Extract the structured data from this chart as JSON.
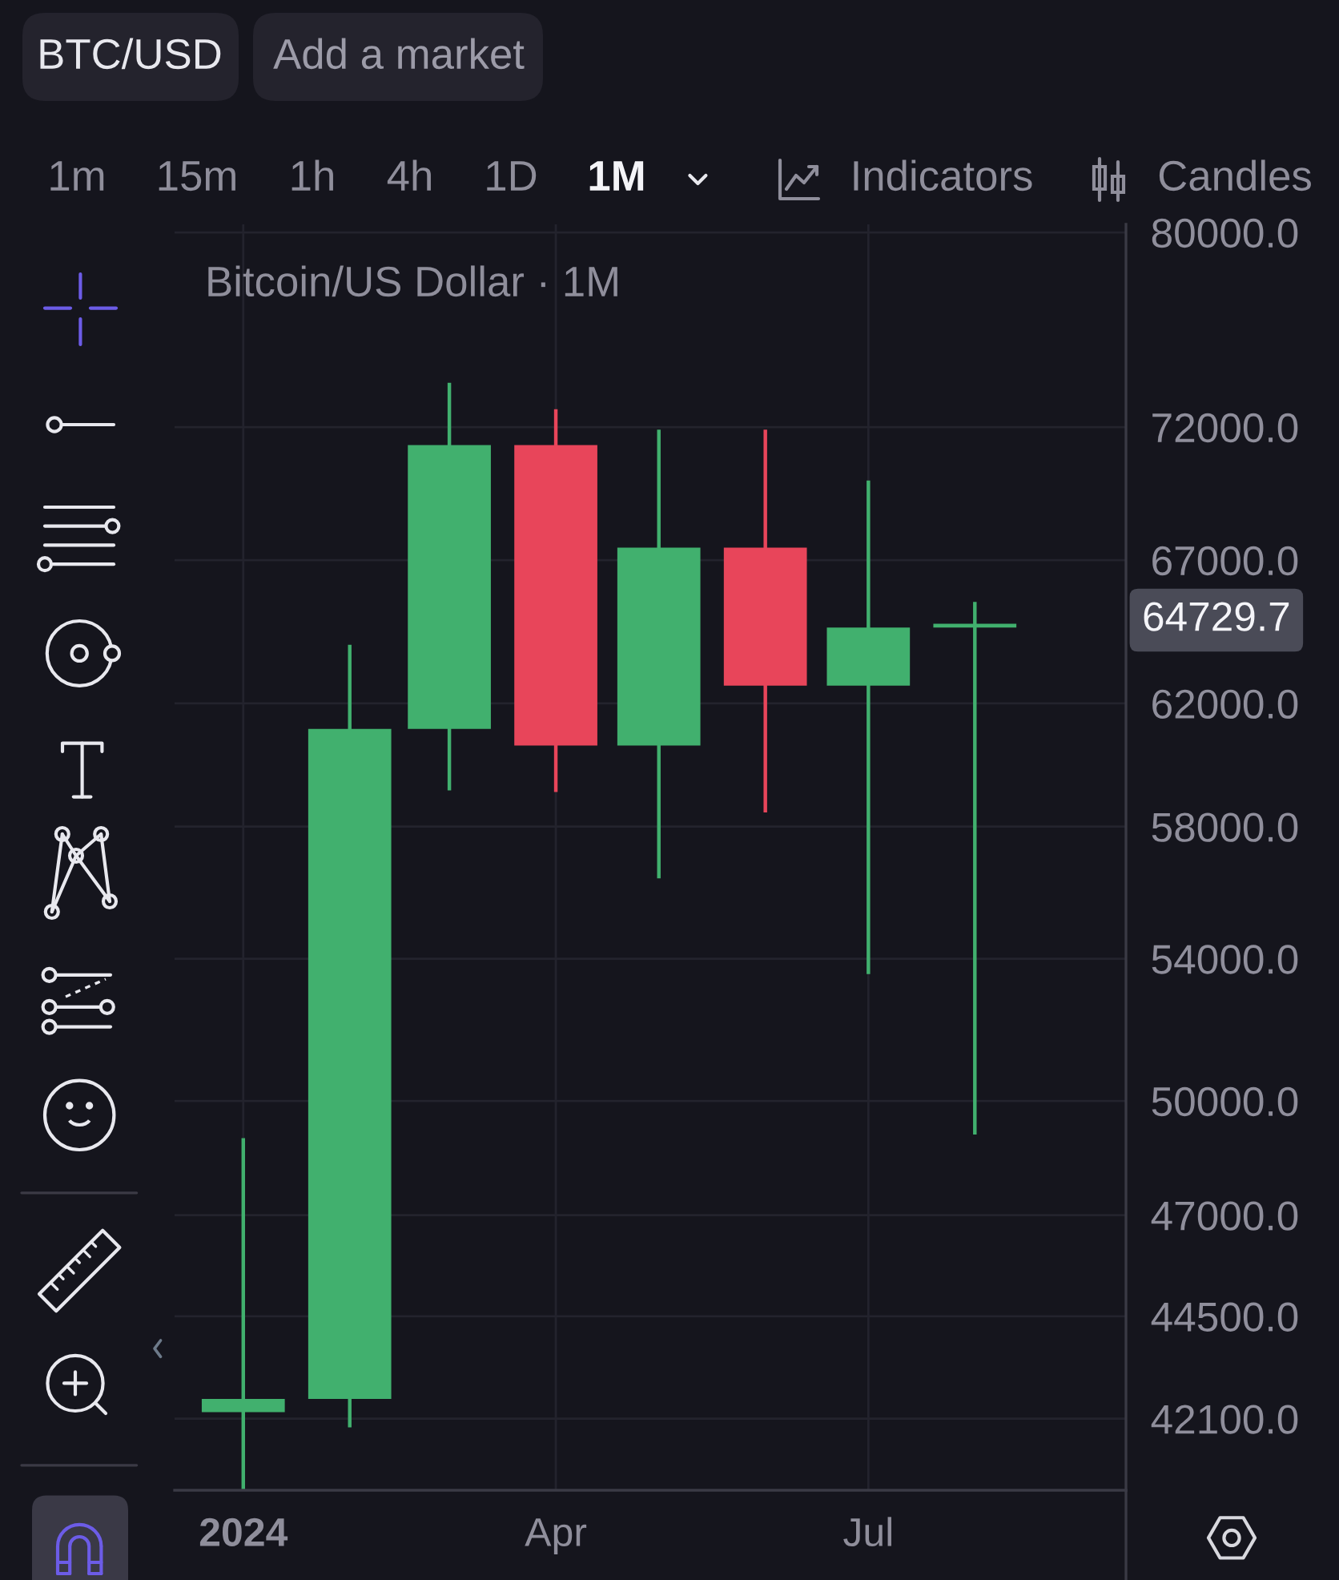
{
  "chart_data": {
    "type": "candlestick",
    "title": "Bitcoin/US Dollar · 1M",
    "x": [
      "2024-01",
      "2024-02",
      "2024-03",
      "2024-04",
      "2024-05",
      "2024-06",
      "2024-07",
      "2024-08"
    ],
    "ohlc": [
      [
        42250,
        49000,
        40500,
        42550
      ],
      [
        42550,
        64000,
        41900,
        61150
      ],
      [
        61150,
        73750,
        59150,
        71300
      ],
      [
        71300,
        72700,
        59100,
        60600
      ],
      [
        60600,
        71900,
        56400,
        67450
      ],
      [
        67450,
        71900,
        58450,
        62600
      ],
      [
        62600,
        69950,
        53550,
        64600
      ],
      [
        64600,
        65500,
        49100,
        64729.7
      ]
    ],
    "colors": [
      "#41b06e",
      "#41b06e",
      "#41b06e",
      "#e8455a",
      "#41b06e",
      "#e8455a",
      "#41b06e",
      "#41b06e"
    ],
    "xlim": [
      "2023-12-12",
      "2024-09-14"
    ],
    "xticks": [
      {
        "value": "2024-01",
        "label": "2024"
      },
      {
        "value": "2024-04",
        "label": "Apr"
      },
      {
        "value": "2024-07",
        "label": "Jul"
      }
    ],
    "ylim": [
      40500,
      80350
    ],
    "yticks": [
      {
        "value": 42100,
        "label": "42100.0"
      },
      {
        "value": 44500,
        "label": "44500.0"
      },
      {
        "value": 47000,
        "label": "47000.0"
      },
      {
        "value": 50000,
        "label": "50000.0"
      },
      {
        "value": 54000,
        "label": "54000.0"
      },
      {
        "value": 58000,
        "label": "58000.0"
      },
      {
        "value": 62000,
        "label": "62000.0"
      },
      {
        "value": 67000,
        "label": "67000.0"
      },
      {
        "value": 72000,
        "label": "72000.0"
      },
      {
        "value": 80000,
        "label": "80000.0"
      }
    ],
    "log": true,
    "grid": true,
    "annotations": [
      "BTC/USD",
      "Add a market",
      "1m",
      "15m",
      "1h",
      "4h",
      "1D",
      "1M",
      "Indicators",
      "Candles",
      "64729.7"
    ]
  }
}
